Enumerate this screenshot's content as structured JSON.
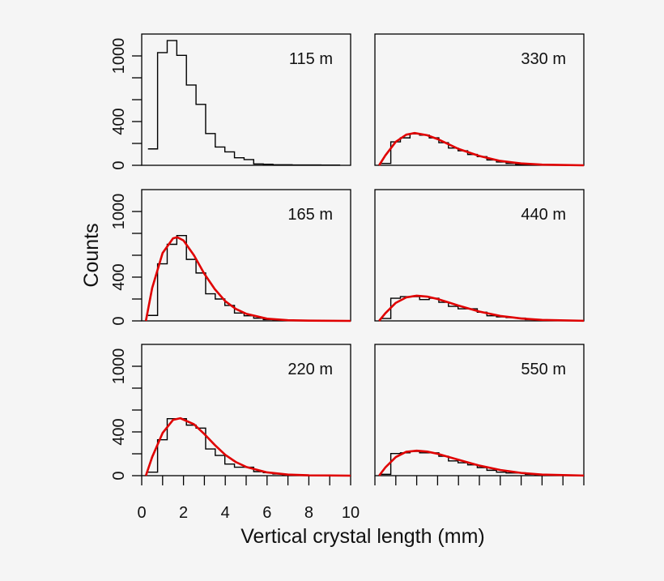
{
  "chart_data": {
    "type": "histogram-panels",
    "xlabel": "Vertical crystal length (mm)",
    "ylabel": "Counts",
    "xlim": [
      0,
      10
    ],
    "ylim": [
      0,
      1200
    ],
    "x_ticks": [
      0,
      2,
      4,
      6,
      8,
      10
    ],
    "y_tick_labels": [
      0,
      400,
      1000
    ],
    "bin_start_mm": 0.3,
    "bin_width_mm": 0.46,
    "fit_color": "#e00000",
    "hist_color": "#000000",
    "panels": [
      {
        "label": "115 m",
        "column": 0,
        "row": 0,
        "counts": [
          150,
          1030,
          1140,
          1005,
          734,
          557,
          290,
          167,
          123,
          69,
          52,
          12,
          10,
          5,
          5,
          3,
          3,
          3,
          2,
          2
        ],
        "fit": []
      },
      {
        "label": "165 m",
        "column": 0,
        "row": 1,
        "counts": [
          50,
          522,
          700,
          780,
          562,
          438,
          248,
          200,
          141,
          72,
          47,
          25,
          12,
          10,
          4,
          3,
          2,
          2,
          1,
          1
        ],
        "fit": [
          [
            0.2,
            0
          ],
          [
            0.5,
            300
          ],
          [
            1,
            620
          ],
          [
            1.5,
            755
          ],
          [
            1.7,
            765
          ],
          [
            2,
            735
          ],
          [
            2.5,
            600
          ],
          [
            3,
            430
          ],
          [
            3.5,
            290
          ],
          [
            4,
            180
          ],
          [
            4.5,
            110
          ],
          [
            5,
            65
          ],
          [
            6,
            20
          ],
          [
            7,
            6
          ],
          [
            8,
            2
          ],
          [
            10,
            0
          ]
        ]
      },
      {
        "label": "220 m",
        "column": 0,
        "row": 2,
        "counts": [
          32,
          328,
          521,
          521,
          462,
          435,
          244,
          185,
          106,
          77,
          77,
          37,
          27,
          15,
          8,
          5,
          3,
          2,
          1,
          1
        ],
        "fit": [
          [
            0.2,
            0
          ],
          [
            0.5,
            170
          ],
          [
            1,
            390
          ],
          [
            1.5,
            510
          ],
          [
            1.85,
            525
          ],
          [
            2.5,
            470
          ],
          [
            3,
            380
          ],
          [
            3.5,
            280
          ],
          [
            4,
            190
          ],
          [
            4.5,
            125
          ],
          [
            5,
            80
          ],
          [
            6,
            30
          ],
          [
            7,
            10
          ],
          [
            8,
            3
          ],
          [
            10,
            0
          ]
        ]
      },
      {
        "label": "330 m",
        "column": 1,
        "row": 0,
        "counts": [
          17,
          214,
          251,
          288,
          276,
          251,
          207,
          158,
          133,
          99,
          79,
          49,
          30,
          17,
          6,
          5,
          4,
          3,
          3,
          2
        ],
        "fit": [
          [
            0.2,
            0
          ],
          [
            0.5,
            90
          ],
          [
            1,
            215
          ],
          [
            1.5,
            280
          ],
          [
            1.9,
            295
          ],
          [
            2.5,
            275
          ],
          [
            3,
            240
          ],
          [
            3.5,
            195
          ],
          [
            4,
            150
          ],
          [
            5,
            85
          ],
          [
            6,
            40
          ],
          [
            7,
            17
          ],
          [
            8,
            6
          ],
          [
            10,
            0
          ]
        ]
      },
      {
        "label": "440 m",
        "column": 1,
        "row": 1,
        "counts": [
          22,
          207,
          222,
          222,
          195,
          207,
          170,
          133,
          111,
          111,
          79,
          47,
          37,
          30,
          25,
          12,
          6,
          5,
          4,
          3
        ],
        "fit": [
          [
            0.2,
            0
          ],
          [
            0.5,
            70
          ],
          [
            1,
            165
          ],
          [
            1.5,
            215
          ],
          [
            2,
            230
          ],
          [
            2.5,
            222
          ],
          [
            3,
            200
          ],
          [
            3.5,
            170
          ],
          [
            4,
            140
          ],
          [
            5,
            85
          ],
          [
            6,
            45
          ],
          [
            7,
            22
          ],
          [
            8,
            9
          ],
          [
            10,
            1
          ]
        ]
      },
      {
        "label": "550 m",
        "column": 1,
        "row": 2,
        "counts": [
          12,
          202,
          209,
          222,
          209,
          209,
          177,
          135,
          118,
          99,
          74,
          49,
          32,
          25,
          25,
          12,
          7,
          4,
          3,
          3
        ],
        "fit": [
          [
            0.2,
            0
          ],
          [
            0.5,
            75
          ],
          [
            1,
            170
          ],
          [
            1.5,
            218
          ],
          [
            2,
            228
          ],
          [
            2.5,
            220
          ],
          [
            3,
            200
          ],
          [
            3.5,
            172
          ],
          [
            4,
            145
          ],
          [
            5,
            92
          ],
          [
            6,
            52
          ],
          [
            7,
            25
          ],
          [
            8,
            10
          ],
          [
            10,
            1
          ]
        ]
      }
    ]
  }
}
